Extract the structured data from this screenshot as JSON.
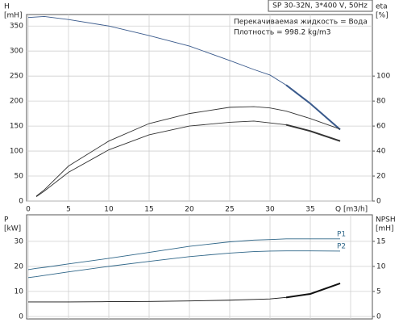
{
  "chart_data": [
    {
      "type": "line",
      "title": "SP 30-32N, 3*400 V, 50Hz",
      "annotations": [
        "Перекачиваемая жидкость = Вода",
        "Плотность = 998.2 kg/m3"
      ],
      "y_label": "H",
      "y_unit": "[mH]",
      "y2_label": "eta",
      "y2_unit": "[%]",
      "x_label": "Q [m3/h]",
      "x": [
        0,
        1,
        2,
        5,
        10,
        15,
        20,
        25,
        28,
        30,
        32,
        35,
        38.7
      ],
      "xlim": [
        -0.2,
        42.7
      ],
      "xticks": [
        0,
        5,
        10,
        15,
        20,
        25,
        30,
        35
      ],
      "ylim": [
        0,
        373
      ],
      "yticks": [
        0,
        50,
        100,
        150,
        200,
        250,
        300,
        350
      ],
      "y2lim": [
        0,
        149.2
      ],
      "y2ticks": [
        0,
        20,
        40,
        60,
        80,
        100
      ],
      "grid": true,
      "series": [
        {
          "color": "#3a5a8c",
          "highlight_xrange": [
            32,
            38.7
          ],
          "values": [
            367,
            368,
            369,
            363,
            350,
            331,
            310,
            281,
            263,
            252,
            232,
            195,
            143
          ]
        },
        {
          "color": "#333333",
          "axis": "y2",
          "values": [
            null,
            4,
            9,
            28,
            48,
            62,
            70,
            75,
            75.5,
            74.5,
            72,
            66,
            57.5
          ]
        },
        {
          "color": "#333333",
          "axis": "y2",
          "highlight_xrange": [
            32,
            38.7
          ],
          "values": [
            null,
            3.5,
            8,
            23,
            41,
            53,
            60,
            63,
            64,
            62.5,
            61,
            56,
            48
          ]
        }
      ]
    },
    {
      "type": "line",
      "y_label": "P",
      "y_unit": "[kW]",
      "y2_label": "NPSH",
      "y2_unit": "[mH]",
      "x": [
        0,
        1,
        2,
        5,
        10,
        15,
        20,
        25,
        28,
        30,
        32,
        35,
        38.7
      ],
      "xlim": [
        -0.2,
        42.7
      ],
      "xticks": [
        0,
        5,
        10,
        15,
        20,
        25,
        30,
        35,
        40
      ],
      "show_xtick_labels": false,
      "ylim": [
        -1,
        40.6
      ],
      "yticks": [
        0,
        10,
        20,
        30
      ],
      "y2lim": [
        -0.5,
        20.3
      ],
      "y2ticks": [
        0,
        5,
        10,
        15
      ],
      "grid": true,
      "series": [
        {
          "name": "P1",
          "color": "#2f6688",
          "values": [
            18.7,
            19.2,
            19.6,
            21,
            23.2,
            25.6,
            28,
            29.8,
            30.5,
            30.7,
            31,
            31,
            31
          ]
        },
        {
          "name": "P2",
          "color": "#2f6688",
          "values": [
            15.5,
            15.9,
            16.4,
            17.8,
            20,
            22,
            23.9,
            25.3,
            25.9,
            26.1,
            26.2,
            26.2,
            26.1
          ]
        },
        {
          "color": "#111111",
          "axis": "y2",
          "highlight_xrange": [
            32,
            38.7
          ],
          "values": [
            2.9,
            2.9,
            2.9,
            2.9,
            2.95,
            3,
            3.1,
            3.25,
            3.4,
            3.5,
            3.8,
            4.5,
            6.6
          ]
        }
      ]
    }
  ]
}
